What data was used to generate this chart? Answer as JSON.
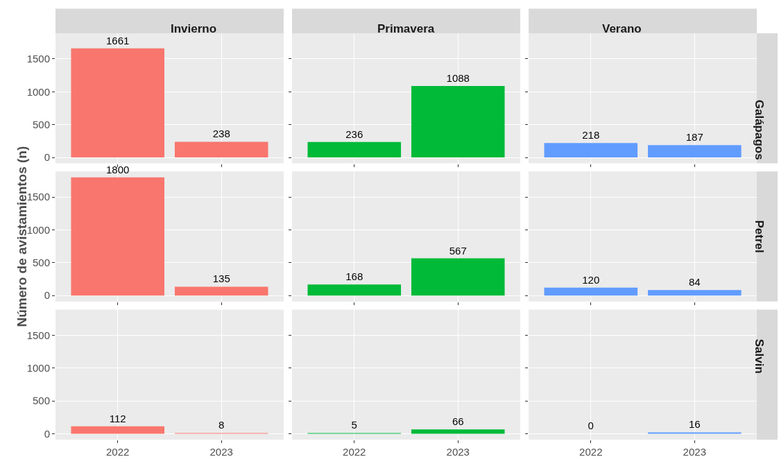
{
  "chart_data": [
    {
      "type": "bar",
      "title": "Invierno",
      "categories": [
        "2022",
        "2023"
      ],
      "values": [
        1661,
        238
      ],
      "color": "#f8766d",
      "ylim": [
        -90,
        1890
      ],
      "yticks": [
        0,
        500,
        1000,
        1500
      ],
      "grid": true,
      "data_labels": true,
      "tick_labels": "y"
    },
    {
      "type": "bar",
      "title": "Primavera",
      "categories": [
        "2022",
        "2023"
      ],
      "values": [
        236,
        1088
      ],
      "color": "#00ba38",
      "ylim": [
        -90,
        1890
      ],
      "yticks": [
        0,
        500,
        1000,
        1500
      ],
      "grid": true,
      "data_labels": true,
      "tick_labels": false
    },
    {
      "type": "bar",
      "title": "Verano",
      "annotations": [
        "Galápagos"
      ],
      "categories": [
        "2022",
        "2023"
      ],
      "values": [
        218,
        187
      ],
      "color": "#619cff",
      "ylim": [
        -90,
        1890
      ],
      "yticks": [
        0,
        500,
        1000,
        1500
      ],
      "grid": true,
      "data_labels": true,
      "tick_labels": false
    },
    {
      "type": "bar",
      "ylabel": "Número de avistamientos (n)",
      "categories": [
        "2022",
        "2023"
      ],
      "values": [
        1800,
        135
      ],
      "color": "#f8766d",
      "ylim": [
        -90,
        1890
      ],
      "yticks": [
        0,
        500,
        1000,
        1500
      ],
      "grid": true,
      "data_labels": true,
      "tick_labels": "y"
    },
    {
      "type": "bar",
      "categories": [
        "2022",
        "2023"
      ],
      "values": [
        168,
        567
      ],
      "color": "#00ba38",
      "ylim": [
        -90,
        1890
      ],
      "yticks": [
        0,
        500,
        1000,
        1500
      ],
      "grid": true,
      "data_labels": true,
      "tick_labels": false
    },
    {
      "type": "bar",
      "annotations": [
        "Petrel"
      ],
      "categories": [
        "2022",
        "2023"
      ],
      "values": [
        120,
        84
      ],
      "color": "#619cff",
      "ylim": [
        -90,
        1890
      ],
      "yticks": [
        0,
        500,
        1000,
        1500
      ],
      "grid": true,
      "data_labels": true,
      "tick_labels": false
    },
    {
      "type": "bar",
      "categories": [
        "2022",
        "2023"
      ],
      "values": [
        112,
        8
      ],
      "color": "#f8766d",
      "ylim": [
        -90,
        1890
      ],
      "yticks": [
        0,
        500,
        1000,
        1500
      ],
      "grid": true,
      "data_labels": true
    },
    {
      "type": "bar",
      "categories": [
        "2022",
        "2023"
      ],
      "values": [
        5,
        66
      ],
      "color": "#00ba38",
      "ylim": [
        -90,
        1890
      ],
      "yticks": [
        0,
        500,
        1000,
        1500
      ],
      "grid": true,
      "data_labels": true,
      "tick_labels": "x"
    },
    {
      "type": "bar",
      "annotations": [
        "Salvin"
      ],
      "categories": [
        "2022",
        "2023"
      ],
      "values": [
        0,
        16
      ],
      "color": "#619cff",
      "ylim": [
        -90,
        1890
      ],
      "yticks": [
        0,
        500,
        1000,
        1500
      ],
      "grid": true,
      "data_labels": true,
      "tick_labels": "x"
    }
  ]
}
